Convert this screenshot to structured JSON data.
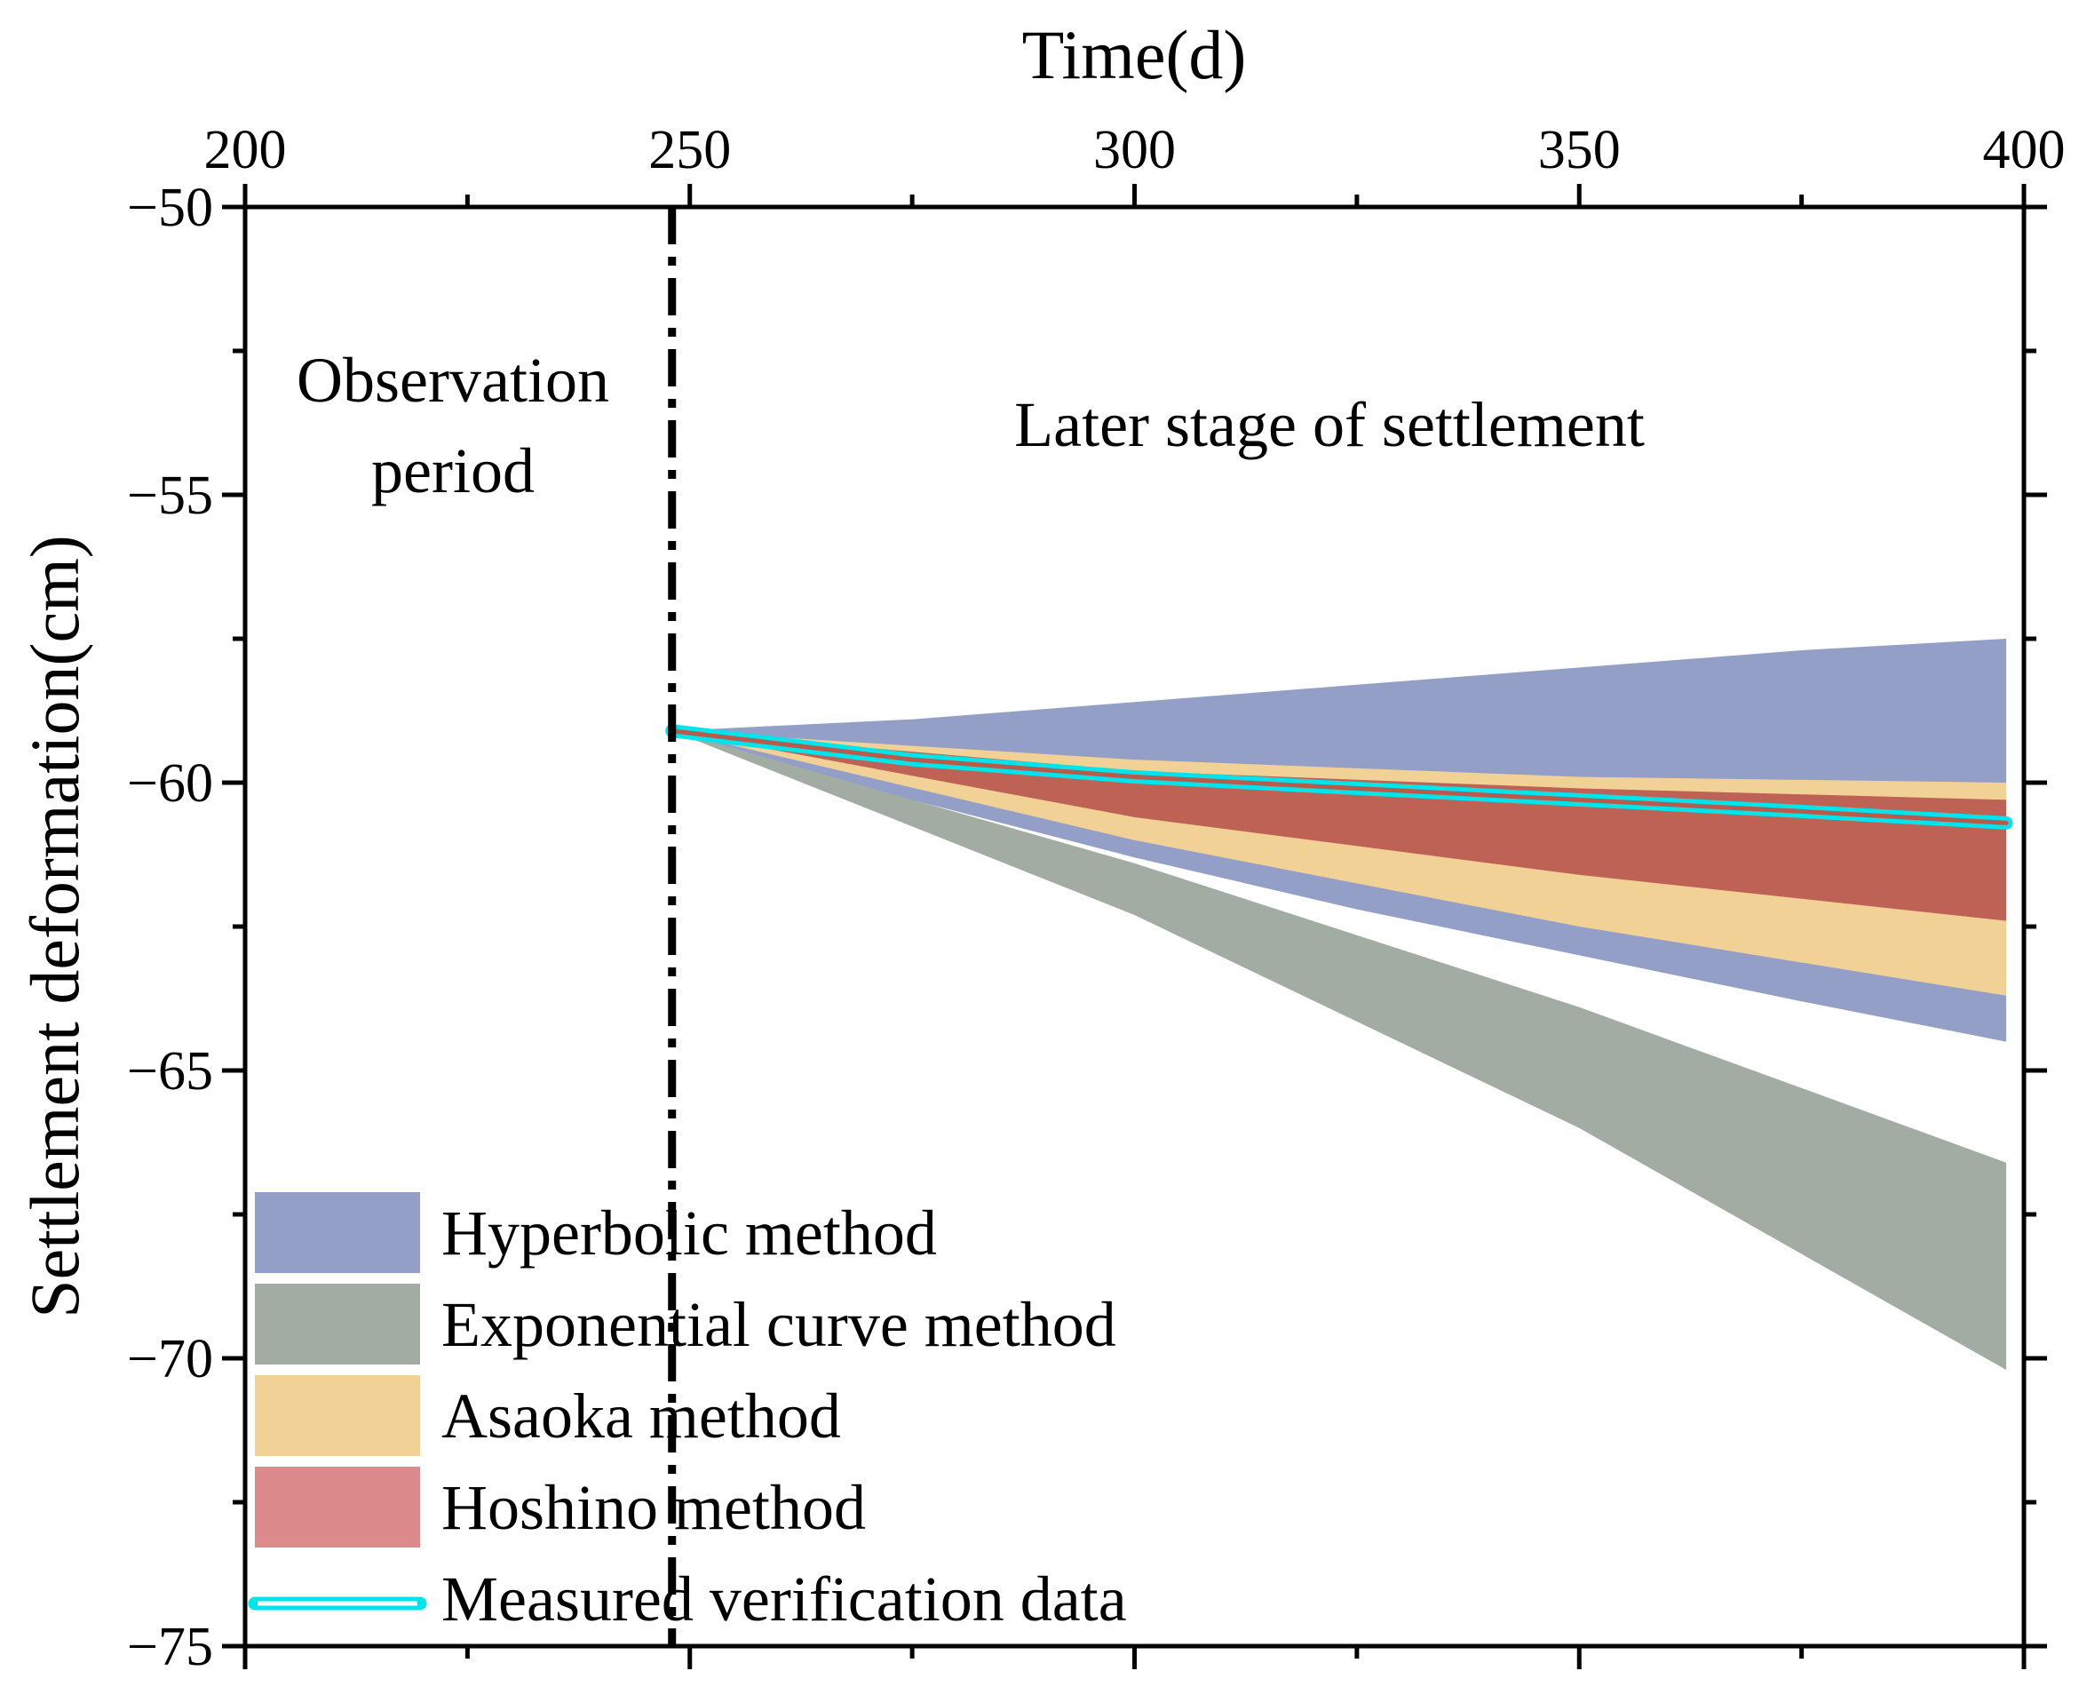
{
  "chart_data": {
    "type": "area",
    "xlabel": "Time(d)",
    "ylabel": "Settlement deformation(cm)",
    "xlim": [
      200,
      400
    ],
    "ylim": [
      -75,
      -50
    ],
    "x_axis_position": "top",
    "x_ticks": [
      200,
      250,
      300,
      350,
      400
    ],
    "x_tick_labels": [
      "200",
      "250",
      "300",
      "350",
      "400"
    ],
    "y_ticks": [
      -50,
      -55,
      -60,
      -65,
      -70,
      -75
    ],
    "y_tick_labels": [
      "−50",
      "−55",
      "−60",
      "−65",
      "−70",
      "−75"
    ],
    "grid": false,
    "legend_position": "bottom-left",
    "divider_x": 248,
    "annotations": [
      {
        "id": "observation",
        "lines": [
          "Observation",
          "period"
        ]
      },
      {
        "id": "later",
        "lines": [
          "Later stage of settlement"
        ]
      }
    ],
    "series": [
      {
        "name": "Exponential curve method",
        "kind": "band",
        "color": "#a2aca2",
        "x": [
          248,
          300,
          350,
          398
        ],
        "upper": [
          -59.1,
          -61.4,
          -63.9,
          -66.6
        ],
        "lower": [
          -59.1,
          -62.3,
          -66.0,
          -70.2
        ]
      },
      {
        "name": "Hyperbolic method",
        "kind": "band",
        "color": "#939fc6",
        "x": [
          248,
          275,
          300,
          325,
          350,
          375,
          398
        ],
        "upper": [
          -59.1,
          -58.9,
          -58.6,
          -58.3,
          -58.0,
          -57.7,
          -57.5
        ],
        "lower": [
          -59.1,
          -60.3,
          -61.3,
          -62.2,
          -63.0,
          -63.8,
          -64.5
        ]
      },
      {
        "name": "Asaoka method",
        "kind": "band",
        "color": "#f2d197",
        "x": [
          248,
          300,
          350,
          398
        ],
        "upper": [
          -59.1,
          -59.6,
          -59.9,
          -60.0
        ],
        "lower": [
          -59.1,
          -61.0,
          -62.5,
          -63.7
        ]
      },
      {
        "name": "Hoshino method",
        "kind": "band",
        "color": "#dc8a8c",
        "x": [
          248,
          300,
          350,
          398
        ],
        "upper": [
          -59.1,
          -59.8,
          -60.1,
          -60.3
        ],
        "lower": [
          -59.1,
          -60.6,
          -61.6,
          -62.4
        ]
      },
      {
        "name": "Measured verification data",
        "kind": "line",
        "color": "#00e4ea",
        "x": [
          248,
          275,
          300,
          325,
          350,
          375,
          398
        ],
        "y": [
          -59.1,
          -59.6,
          -59.9,
          -60.1,
          -60.3,
          -60.5,
          -60.7
        ]
      }
    ]
  }
}
